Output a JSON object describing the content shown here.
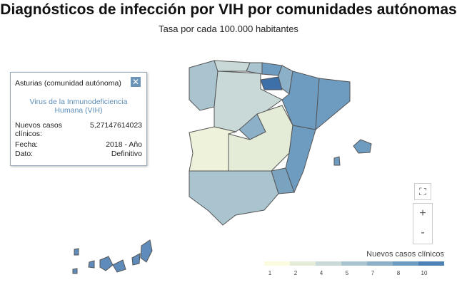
{
  "header": {
    "title": "Diagnósticos de infección por VIH por comunidades autónomas",
    "subtitle": "Tasa por cada 100.000 habitantes"
  },
  "tooltip": {
    "region": "Asturias (comunidad autónoma)",
    "indicator": "Virus de la Inmunodeficiencia Humana (VIH)",
    "rows": [
      {
        "label": "Nuevos casos clínicos:",
        "value": "5,27147614023"
      },
      {
        "label": "Fecha:",
        "value": "2018 - Año"
      },
      {
        "label": "Dato:",
        "value": "Definitivo"
      }
    ]
  },
  "legend": {
    "title": "Nuevos casos clínicos",
    "labels": [
      1,
      2,
      4,
      5,
      7,
      8,
      10
    ],
    "colors": [
      "#fbfbe0",
      "#e4ecd8",
      "#c9d9d8",
      "#a9c3cf",
      "#8cb0c8",
      "#6e9bc0",
      "#4f82b4"
    ]
  },
  "controls": {
    "zoom_in": "+",
    "zoom_out": "-"
  }
}
